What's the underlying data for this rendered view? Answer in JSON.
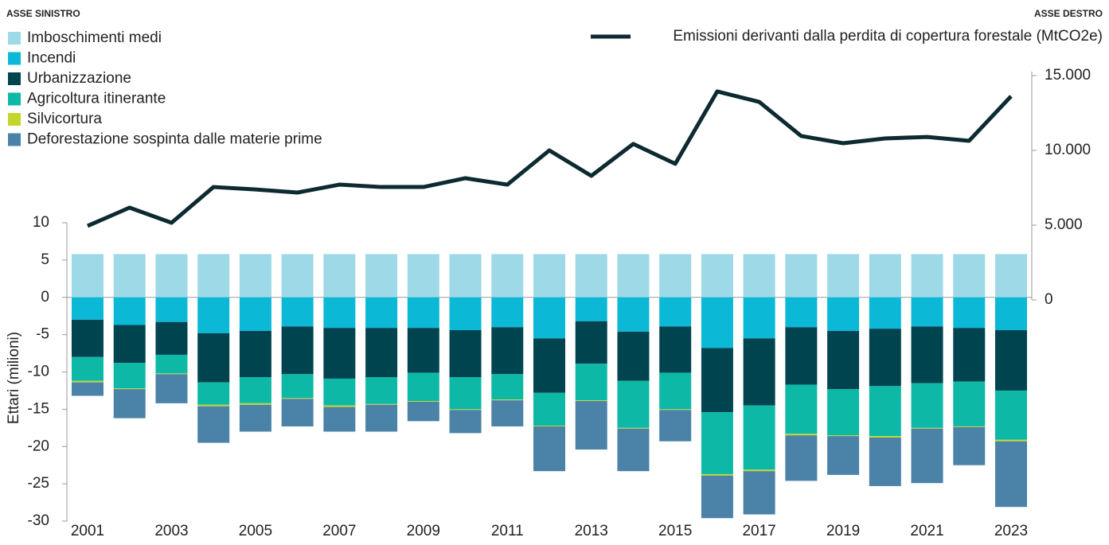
{
  "chart_data": {
    "type": "bar",
    "left_axis_title": "ASSE SINISTRO",
    "right_axis_title": "ASSE DESTRO",
    "ylabel": "Ettari (milioni)",
    "categories": [
      "2001",
      null,
      "2003",
      null,
      "2005",
      null,
      "2007",
      null,
      "2009",
      null,
      "2011",
      null,
      "2013",
      null,
      "2015",
      null,
      "2017",
      null,
      "2019",
      null,
      "2021",
      null,
      "2023"
    ],
    "stacked": true,
    "series": [
      {
        "name": "Imboschimenti medi",
        "color": "#9dd9e6",
        "values": [
          5.8,
          5.8,
          5.8,
          5.8,
          5.8,
          5.8,
          5.8,
          5.8,
          5.8,
          5.8,
          5.8,
          5.8,
          5.8,
          5.8,
          5.8,
          5.8,
          5.8,
          5.8,
          5.8,
          5.8,
          5.8,
          5.8,
          5.8
        ]
      },
      {
        "name": "Incendi",
        "color": "#0bb8d6",
        "values": [
          -3.0,
          -3.7,
          -3.3,
          -4.8,
          -4.5,
          -3.9,
          -4.1,
          -4.1,
          -4.1,
          -4.4,
          -4.0,
          -5.5,
          -3.2,
          -4.6,
          -3.9,
          -6.8,
          -5.5,
          -4.0,
          -4.5,
          -4.2,
          -3.9,
          -4.1,
          -4.4
        ]
      },
      {
        "name": "Urbanizzazione",
        "color": "#004450",
        "values": [
          -5.0,
          -5.1,
          -4.4,
          -6.6,
          -6.2,
          -6.4,
          -6.8,
          -6.6,
          -6.0,
          -6.3,
          -6.3,
          -7.3,
          -5.7,
          -6.6,
          -6.2,
          -8.6,
          -9.0,
          -7.7,
          -7.8,
          -7.7,
          -7.6,
          -7.2,
          -8.1
        ]
      },
      {
        "name": "Agricoltura itinerante",
        "color": "#0db8a6",
        "values": [
          -3.2,
          -3.4,
          -2.5,
          -3.0,
          -3.5,
          -3.2,
          -3.6,
          -3.6,
          -3.8,
          -4.3,
          -3.4,
          -4.4,
          -4.9,
          -6.3,
          -4.9,
          -8.3,
          -8.6,
          -6.6,
          -6.2,
          -6.7,
          -6.0,
          -6.0,
          -6.6
        ]
      },
      {
        "name": "Silvicortura",
        "color": "#c4d52c",
        "values": [
          -0.2,
          -0.1,
          -0.1,
          -0.2,
          -0.2,
          -0.1,
          -0.2,
          -0.1,
          -0.1,
          -0.1,
          -0.1,
          -0.1,
          -0.1,
          -0.1,
          -0.1,
          -0.2,
          -0.2,
          -0.2,
          -0.1,
          -0.2,
          -0.1,
          -0.1,
          -0.2
        ]
      },
      {
        "name": "Deforestazione sospinta dalle materie prime",
        "color": "#4a82a8",
        "values": [
          -1.8,
          -3.9,
          -3.9,
          -4.9,
          -3.6,
          -3.7,
          -3.3,
          -3.6,
          -2.6,
          -3.1,
          -3.5,
          -6.0,
          -6.5,
          -5.7,
          -4.2,
          -5.7,
          -5.8,
          -6.1,
          -5.2,
          -6.5,
          -7.3,
          -5.1,
          -8.8
        ]
      },
      {
        "name": "Emissioni derivanti dalla perdita di copertura forestale (MtCO2e)",
        "color": "#0d2a30",
        "type": "line",
        "axis": "y2",
        "values": [
          4950,
          6170,
          5160,
          7550,
          7390,
          7180,
          7710,
          7550,
          7550,
          8140,
          7710,
          10000,
          8300,
          10430,
          9100,
          13940,
          13240,
          10960,
          10480,
          10800,
          10900,
          10640,
          13620
        ]
      }
    ],
    "ylim": [
      -30,
      10
    ],
    "yticks": [
      -30,
      -25,
      -20,
      -15,
      -10,
      -5,
      0,
      5,
      10
    ],
    "y2lim": [
      0,
      15000
    ],
    "y2ticks": [
      0,
      {
        "value": 5000,
        "label": "5.000"
      },
      {
        "value": 10000,
        "label": "10.000"
      },
      {
        "value": 15000,
        "label": "15.000"
      }
    ]
  }
}
